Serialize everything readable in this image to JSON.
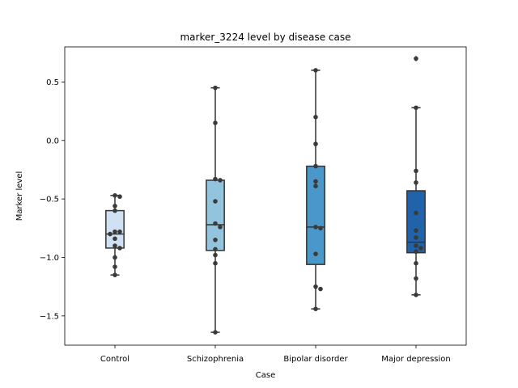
{
  "chart_data": {
    "type": "box",
    "title": "marker_3224 level by disease case",
    "xlabel": "Case",
    "ylabel": "Marker level",
    "categories": [
      "Control",
      "Schizophrenia",
      "Bipolar disorder",
      "Major depression"
    ],
    "ylim": [
      -1.75,
      0.8
    ],
    "yticks": [
      0.5,
      0.0,
      -0.5,
      -1.0,
      -1.5
    ],
    "ytick_labels": [
      "0.5",
      "0.0",
      "−0.5",
      "−1.0",
      "−1.5"
    ],
    "grid": false,
    "legend": "none",
    "box_colors": [
      "#cfe1f2",
      "#93c4de",
      "#4a98c9",
      "#2163aa"
    ],
    "boxes": [
      {
        "q1": -0.92,
        "median": -0.8,
        "q3": -0.6,
        "whisker_low": -1.15,
        "whisker_high": -0.47,
        "outliers": []
      },
      {
        "q1": -0.94,
        "median": -0.72,
        "q3": -0.34,
        "whisker_low": -1.64,
        "whisker_high": 0.45,
        "outliers": []
      },
      {
        "q1": -1.06,
        "median": -0.74,
        "q3": -0.22,
        "whisker_low": -1.44,
        "whisker_high": 0.6,
        "outliers": []
      },
      {
        "q1": -0.96,
        "median": -0.87,
        "q3": -0.43,
        "whisker_low": -1.32,
        "whisker_high": 0.28,
        "outliers": [
          0.7
        ]
      }
    ],
    "points": [
      [
        -0.47,
        -0.48,
        -0.56,
        -0.6,
        -0.78,
        -0.78,
        -0.8,
        -0.84,
        -0.9,
        -0.92,
        -1.0,
        -1.08,
        -1.15
      ],
      [
        0.45,
        0.15,
        -0.33,
        -0.34,
        -0.52,
        -0.71,
        -0.74,
        -0.85,
        -0.93,
        -0.98,
        -1.05,
        -1.64
      ],
      [
        0.6,
        0.2,
        -0.03,
        -0.22,
        -0.35,
        -0.39,
        -0.74,
        -0.75,
        -0.97,
        -1.25,
        -1.27,
        -1.44
      ],
      [
        0.7,
        0.28,
        -0.26,
        -0.36,
        -0.62,
        -0.77,
        -0.83,
        -0.9,
        -0.92,
        -0.95,
        -1.05,
        -1.18,
        -1.32
      ]
    ]
  }
}
